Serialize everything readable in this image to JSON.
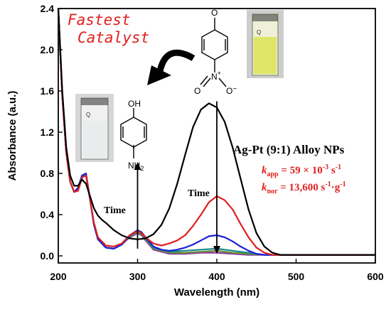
{
  "chart_data": {
    "type": "line",
    "xlabel": "Wavelength (nm)",
    "ylabel": "Absorbance (a.u.)",
    "xlim": [
      200,
      600
    ],
    "ylim": [
      -0.05,
      2.4
    ],
    "xticks": [
      200,
      300,
      400,
      500,
      600
    ],
    "yticks": [
      0.0,
      0.4,
      0.8,
      1.2,
      1.6,
      2.0,
      2.4
    ],
    "ytick_labels": [
      "0.0",
      "0.4",
      "0.8",
      "1.2",
      "1.6",
      "2.0",
      "2.4"
    ],
    "grid": false,
    "series": [
      {
        "color": "#000000",
        "x": [
          200,
          205,
          210,
          215,
          220,
          225,
          230,
          235,
          240,
          245,
          250,
          255,
          260,
          270,
          280,
          290,
          300,
          310,
          320,
          330,
          340,
          350,
          360,
          370,
          380,
          390,
          400,
          410,
          420,
          430,
          440,
          450,
          460,
          470,
          480,
          490,
          500,
          550,
          600
        ],
        "y": [
          2.4,
          1.6,
          1.05,
          0.78,
          0.68,
          0.68,
          0.74,
          0.7,
          0.58,
          0.46,
          0.39,
          0.35,
          0.32,
          0.25,
          0.2,
          0.17,
          0.16,
          0.17,
          0.21,
          0.3,
          0.46,
          0.7,
          0.98,
          1.25,
          1.42,
          1.48,
          1.44,
          1.3,
          1.05,
          0.75,
          0.45,
          0.22,
          0.09,
          0.03,
          0.01,
          0.01,
          0.01,
          0.01,
          0.01
        ]
      },
      {
        "color": "#e01f1f",
        "x": [
          200,
          205,
          210,
          215,
          220,
          225,
          230,
          235,
          240,
          245,
          250,
          260,
          270,
          280,
          290,
          300,
          305,
          310,
          320,
          330,
          340,
          350,
          360,
          370,
          380,
          390,
          400,
          410,
          420,
          430,
          440,
          450,
          460,
          470,
          480,
          500,
          550,
          600
        ],
        "y": [
          2.4,
          1.55,
          1.0,
          0.72,
          0.62,
          0.63,
          0.76,
          0.78,
          0.55,
          0.32,
          0.18,
          0.1,
          0.09,
          0.12,
          0.2,
          0.24,
          0.22,
          0.18,
          0.12,
          0.1,
          0.12,
          0.15,
          0.2,
          0.29,
          0.4,
          0.52,
          0.58,
          0.54,
          0.45,
          0.31,
          0.18,
          0.08,
          0.03,
          0.01,
          0.01,
          0.01,
          0.01,
          0.01
        ]
      },
      {
        "color": "#1f1fd6",
        "x": [
          200,
          205,
          210,
          215,
          220,
          225,
          230,
          235,
          240,
          245,
          250,
          260,
          270,
          280,
          290,
          300,
          305,
          310,
          320,
          330,
          340,
          350,
          360,
          370,
          380,
          390,
          400,
          410,
          420,
          430,
          440,
          450,
          460,
          470,
          500,
          600
        ],
        "y": [
          2.4,
          1.55,
          1.0,
          0.72,
          0.62,
          0.66,
          0.78,
          0.8,
          0.55,
          0.3,
          0.16,
          0.08,
          0.07,
          0.11,
          0.2,
          0.25,
          0.23,
          0.18,
          0.09,
          0.06,
          0.05,
          0.06,
          0.08,
          0.11,
          0.15,
          0.19,
          0.2,
          0.18,
          0.14,
          0.09,
          0.05,
          0.02,
          0.01,
          0.01,
          0.01,
          0.01
        ]
      },
      {
        "color": "#1a8a8a",
        "x": [
          200,
          205,
          210,
          215,
          220,
          225,
          230,
          235,
          240,
          245,
          250,
          260,
          270,
          280,
          290,
          300,
          305,
          310,
          320,
          340,
          360,
          380,
          400,
          420,
          440,
          460,
          500,
          600
        ],
        "y": [
          2.4,
          1.55,
          1.0,
          0.72,
          0.62,
          0.66,
          0.78,
          0.79,
          0.55,
          0.3,
          0.16,
          0.08,
          0.07,
          0.11,
          0.19,
          0.24,
          0.22,
          0.17,
          0.08,
          0.04,
          0.05,
          0.06,
          0.07,
          0.05,
          0.03,
          0.01,
          0.01,
          0.01
        ]
      },
      {
        "color": "#6a8f3a",
        "x": [
          200,
          205,
          210,
          215,
          220,
          225,
          230,
          235,
          240,
          245,
          250,
          260,
          270,
          280,
          290,
          300,
          305,
          310,
          320,
          340,
          360,
          380,
          400,
          420,
          440,
          460,
          500,
          600
        ],
        "y": [
          2.4,
          1.55,
          1.0,
          0.72,
          0.62,
          0.66,
          0.78,
          0.79,
          0.55,
          0.3,
          0.16,
          0.08,
          0.07,
          0.11,
          0.19,
          0.23,
          0.21,
          0.16,
          0.07,
          0.03,
          0.03,
          0.04,
          0.05,
          0.03,
          0.02,
          0.01,
          0.01,
          0.01
        ]
      },
      {
        "color": "#8a3a9a",
        "x": [
          200,
          205,
          210,
          215,
          220,
          225,
          230,
          235,
          240,
          245,
          250,
          260,
          270,
          280,
          290,
          300,
          305,
          310,
          320,
          340,
          360,
          380,
          400,
          420,
          440,
          460,
          500,
          600
        ],
        "y": [
          2.4,
          1.55,
          1.0,
          0.72,
          0.62,
          0.66,
          0.78,
          0.79,
          0.55,
          0.3,
          0.16,
          0.08,
          0.07,
          0.11,
          0.18,
          0.22,
          0.2,
          0.15,
          0.06,
          0.02,
          0.02,
          0.03,
          0.03,
          0.02,
          0.01,
          0.01,
          0.01,
          0.01
        ]
      }
    ],
    "arrows": [
      {
        "label": "Time",
        "x": 300,
        "from": 0.07,
        "to": 0.91,
        "direction": "up"
      },
      {
        "label": "Time",
        "x": 400,
        "from": 1.5,
        "to": 0.02,
        "direction": "down"
      }
    ]
  },
  "annotations": {
    "headline_line1": "Fastest",
    "headline_line2": "Catalyst",
    "sample": "Ag-Pt (9:1) Alloy NPs",
    "kapp_k": "k",
    "kapp_sub": "app",
    "kapp_eq": " = 59 × 10",
    "kapp_exp": "-3",
    "kapp_unit": " s",
    "kapp_unit_exp": "-1",
    "knor_k": "k",
    "knor_sub": "nor",
    "knor_eq": " = 13,600 s",
    "knor_exp": "-1",
    "knor_mid": "·g",
    "knor_exp2": "-1",
    "time_left": "Time",
    "time_right": "Time",
    "colors": {
      "accent": "#e01f1f"
    }
  },
  "molecules": {
    "aminophenol_top": "OH",
    "aminophenol_bottom_main": "NH",
    "aminophenol_bottom_sub": "2",
    "nitrophenolate_top": "O",
    "nitrophenolate_top_charge": "−",
    "nitro_n": "N",
    "nitro_n_charge": "+",
    "nitro_o_left": "O",
    "nitro_o_right": "O",
    "nitro_o_right_charge": "−",
    "cuvette_label_left": "Q",
    "cuvette_label_right": "Q"
  }
}
